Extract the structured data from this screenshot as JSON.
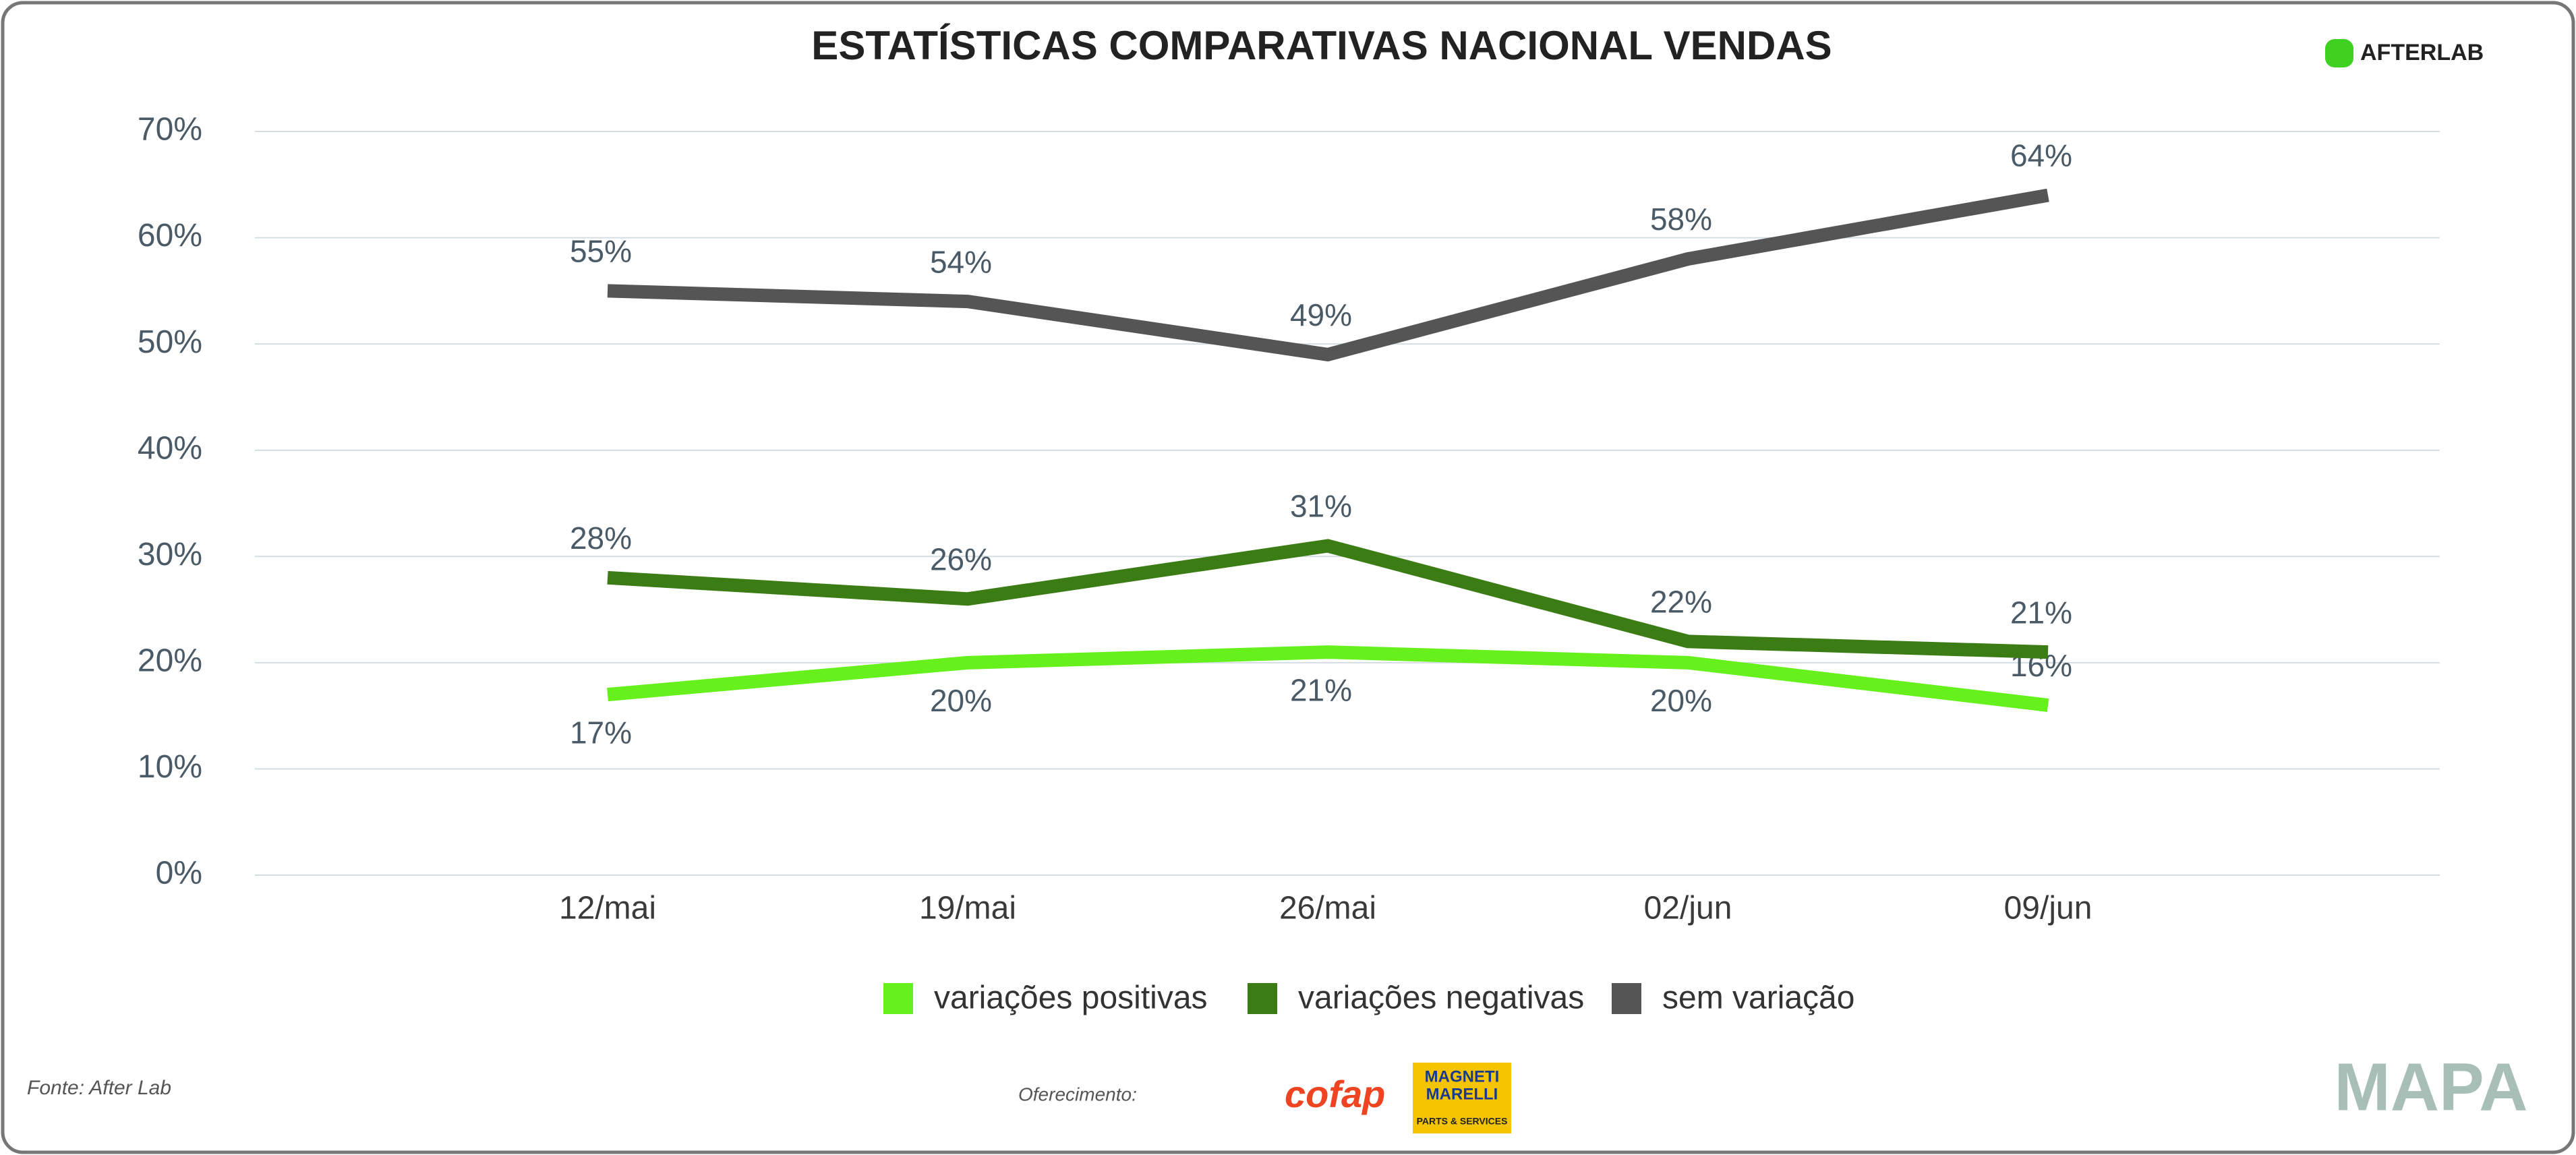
{
  "chart_data": {
    "type": "line",
    "title": "ESTATÍSTICAS COMPARATIVAS NACIONAL VENDAS",
    "categories": [
      "12/mai",
      "19/mai",
      "26/mai",
      "02/jun",
      "09/jun"
    ],
    "series": [
      {
        "name": "variações positivas",
        "color": "#66f01c",
        "values": [
          17,
          20,
          21,
          20,
          16
        ],
        "value_labels": [
          "17%",
          "20%",
          "21%",
          "20%",
          "16%"
        ]
      },
      {
        "name": "variações negativas",
        "color": "#3b7d14",
        "values": [
          28,
          26,
          31,
          22,
          21
        ],
        "value_labels": [
          "28%",
          "26%",
          "31%",
          "22%",
          "21%"
        ]
      },
      {
        "name": "sem variação",
        "color": "#555555",
        "values": [
          55,
          54,
          49,
          58,
          64
        ],
        "value_labels": [
          "55%",
          "54%",
          "49%",
          "58%",
          "64%"
        ]
      }
    ],
    "ylim": [
      0,
      70
    ],
    "yticks": [
      {
        "value": 0,
        "label": "0%"
      },
      {
        "value": 10,
        "label": "10%"
      },
      {
        "value": 20,
        "label": "20%"
      },
      {
        "value": 30,
        "label": "30%"
      },
      {
        "value": 40,
        "label": "40%"
      },
      {
        "value": 50,
        "label": "50%"
      },
      {
        "value": 60,
        "label": "60%"
      },
      {
        "value": 70,
        "label": "70%"
      }
    ],
    "grid": true,
    "legend": "bottom"
  },
  "logo": "AFTERLAB",
  "footer": {
    "source": "Fonte: After Lab",
    "sponsor_label": "Oferecimento:",
    "sponsor_1": "cofap",
    "sponsor_2_line1": "MAGNETI",
    "sponsor_2_line2": "MARELLI",
    "sponsor_2_line3": "PARTS & SERVICES",
    "brand": "MAPA"
  }
}
